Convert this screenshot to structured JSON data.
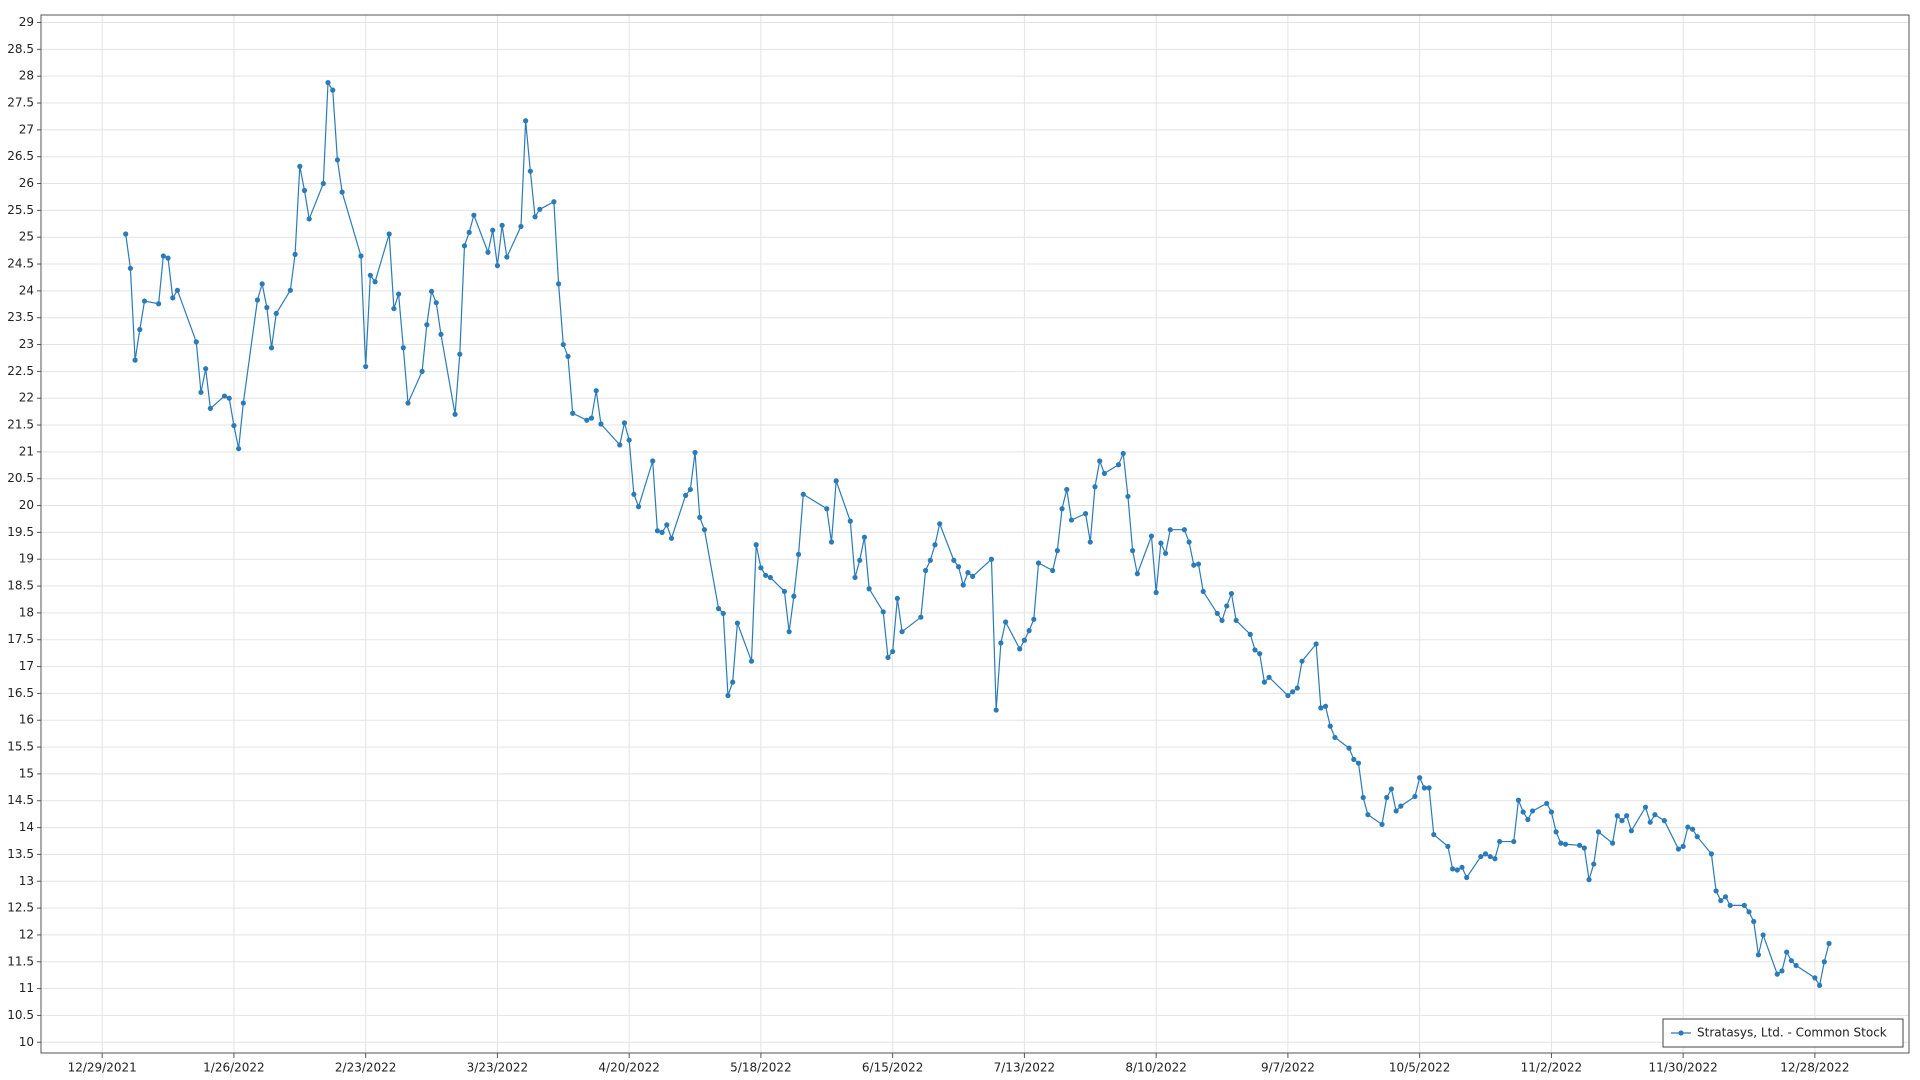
{
  "chart_data": {
    "type": "line",
    "grid": true,
    "markers": true,
    "legend": "lower right",
    "ylim": [
      9.8,
      29.14
    ],
    "yticks": [
      10,
      10.5,
      11,
      11.5,
      12,
      12.5,
      13,
      13.5,
      14,
      14.5,
      15,
      15.5,
      16,
      16.5,
      17,
      17.5,
      18,
      18.5,
      19,
      19.5,
      20,
      20.5,
      21,
      21.5,
      22,
      22.5,
      23,
      23.5,
      24,
      24.5,
      25,
      25.5,
      26,
      26.5,
      27,
      27.5,
      28,
      28.5,
      29
    ],
    "xlim": [
      "12/16/2021",
      "1/17/2023"
    ],
    "xticks": [
      "12/29/2021",
      "1/26/2022",
      "2/23/2022",
      "3/23/2022",
      "4/20/2022",
      "5/18/2022",
      "6/15/2022",
      "7/13/2022",
      "8/10/2022",
      "9/7/2022",
      "10/5/2022",
      "11/2/2022",
      "11/30/2022",
      "12/28/2022"
    ],
    "x": [
      "1/3/2022",
      "1/4/2022",
      "1/5/2022",
      "1/6/2022",
      "1/7/2022",
      "1/10/2022",
      "1/11/2022",
      "1/12/2022",
      "1/13/2022",
      "1/14/2022",
      "1/18/2022",
      "1/19/2022",
      "1/20/2022",
      "1/21/2022",
      "1/24/2022",
      "1/25/2022",
      "1/26/2022",
      "1/27/2022",
      "1/28/2022",
      "1/31/2022",
      "2/1/2022",
      "2/2/2022",
      "2/3/2022",
      "2/4/2022",
      "2/7/2022",
      "2/8/2022",
      "2/9/2022",
      "2/10/2022",
      "2/11/2022",
      "2/14/2022",
      "2/15/2022",
      "2/16/2022",
      "2/17/2022",
      "2/18/2022",
      "2/22/2022",
      "2/23/2022",
      "2/24/2022",
      "2/25/2022",
      "2/28/2022",
      "3/1/2022",
      "3/2/2022",
      "3/3/2022",
      "3/4/2022",
      "3/7/2022",
      "3/8/2022",
      "3/9/2022",
      "3/10/2022",
      "3/11/2022",
      "3/14/2022",
      "3/15/2022",
      "3/16/2022",
      "3/17/2022",
      "3/18/2022",
      "3/21/2022",
      "3/22/2022",
      "3/23/2022",
      "3/24/2022",
      "3/25/2022",
      "3/28/2022",
      "3/29/2022",
      "3/30/2022",
      "3/31/2022",
      "4/1/2022",
      "4/4/2022",
      "4/5/2022",
      "4/6/2022",
      "4/7/2022",
      "4/8/2022",
      "4/11/2022",
      "4/12/2022",
      "4/13/2022",
      "4/14/2022",
      "4/18/2022",
      "4/19/2022",
      "4/20/2022",
      "4/21/2022",
      "4/22/2022",
      "4/25/2022",
      "4/26/2022",
      "4/27/2022",
      "4/28/2022",
      "4/29/2022",
      "5/2/2022",
      "5/3/2022",
      "5/4/2022",
      "5/5/2022",
      "5/6/2022",
      "5/9/2022",
      "5/10/2022",
      "5/11/2022",
      "5/12/2022",
      "5/13/2022",
      "5/16/2022",
      "5/17/2022",
      "5/18/2022",
      "5/19/2022",
      "5/20/2022",
      "5/23/2022",
      "5/24/2022",
      "5/25/2022",
      "5/26/2022",
      "5/27/2022",
      "6/1/2022",
      "6/2/2022",
      "6/3/2022",
      "6/6/2022",
      "6/7/2022",
      "6/8/2022",
      "6/9/2022",
      "6/10/2022",
      "6/13/2022",
      "6/14/2022",
      "6/15/2022",
      "6/16/2022",
      "6/17/2022",
      "6/21/2022",
      "6/22/2022",
      "6/23/2022",
      "6/24/2022",
      "6/25/2022",
      "6/28/2022",
      "6/29/2022",
      "6/30/2022",
      "7/1/2022",
      "7/2/2022",
      "7/6/2022",
      "7/7/2022",
      "7/8/2022",
      "7/9/2022",
      "7/12/2022",
      "7/13/2022",
      "7/14/2022",
      "7/15/2022",
      "7/16/2022",
      "7/19/2022",
      "7/20/2022",
      "7/21/2022",
      "7/22/2022",
      "7/23/2022",
      "7/26/2022",
      "7/27/2022",
      "7/28/2022",
      "7/29/2022",
      "7/30/2022",
      "8/2/2022",
      "8/3/2022",
      "8/4/2022",
      "8/5/2022",
      "8/6/2022",
      "8/9/2022",
      "8/10/2022",
      "8/11/2022",
      "8/12/2022",
      "8/13/2022",
      "8/16/2022",
      "8/17/2022",
      "8/18/2022",
      "8/19/2022",
      "8/20/2022",
      "8/23/2022",
      "8/24/2022",
      "8/25/2022",
      "8/26/2022",
      "8/27/2022",
      "8/30/2022",
      "8/31/2022",
      "9/1/2022",
      "9/2/2022",
      "9/3/2022",
      "9/7/2022",
      "9/8/2022",
      "9/9/2022",
      "9/10/2022",
      "9/13/2022",
      "9/14/2022",
      "9/15/2022",
      "9/16/2022",
      "9/17/2022",
      "9/20/2022",
      "9/21/2022",
      "9/22/2022",
      "9/23/2022",
      "9/24/2022",
      "9/27/2022",
      "9/28/2022",
      "9/29/2022",
      "9/30/2022",
      "10/1/2022",
      "10/4/2022",
      "10/5/2022",
      "10/6/2022",
      "10/7/2022",
      "10/8/2022",
      "10/11/2022",
      "10/12/2022",
      "10/13/2022",
      "10/14/2022",
      "10/15/2022",
      "10/18/2022",
      "10/19/2022",
      "10/20/2022",
      "10/21/2022",
      "10/22/2022",
      "10/25/2022",
      "10/26/2022",
      "10/27/2022",
      "10/28/2022",
      "10/29/2022",
      "11/1/2022",
      "11/2/2022",
      "11/3/2022",
      "11/4/2022",
      "11/5/2022",
      "11/8/2022",
      "11/9/2022",
      "11/10/2022",
      "11/11/2022",
      "11/12/2022",
      "11/15/2022",
      "11/16/2022",
      "11/17/2022",
      "11/18/2022",
      "11/19/2022",
      "11/22/2022",
      "11/23/2022",
      "11/24/2022",
      "11/26/2022",
      "11/29/2022",
      "11/30/2022",
      "12/1/2022",
      "12/2/2022",
      "12/3/2022",
      "12/6/2022",
      "12/7/2022",
      "12/8/2022",
      "12/9/2022",
      "12/10/2022",
      "12/13/2022",
      "12/14/2022",
      "12/15/2022",
      "12/16/2022",
      "12/17/2022",
      "12/20/2022",
      "12/21/2022",
      "12/22/2022",
      "12/23/2022",
      "12/24/2022",
      "12/28/2022",
      "12/29/2022",
      "12/30/2022",
      "12/31/2022"
    ],
    "series": [
      {
        "name": "Stratasys, Ltd. - Common Stock",
        "color": "#2b7bb9",
        "values": [
          25.06,
          24.42,
          22.71,
          23.28,
          23.81,
          23.76,
          24.65,
          24.61,
          23.87,
          24.01,
          23.05,
          22.11,
          22.55,
          21.81,
          22.04,
          22.0,
          21.49,
          21.06,
          21.91,
          23.83,
          24.13,
          23.69,
          22.94,
          23.58,
          24.01,
          24.68,
          26.32,
          25.87,
          25.34,
          26.0,
          27.88,
          27.74,
          26.44,
          25.84,
          24.65,
          22.59,
          24.29,
          24.17,
          25.06,
          23.67,
          23.94,
          22.94,
          21.91,
          22.5,
          23.37,
          23.99,
          23.78,
          23.19,
          21.7,
          22.82,
          24.84,
          25.09,
          25.41,
          24.72,
          25.13,
          24.47,
          25.22,
          24.63,
          25.2,
          27.17,
          26.23,
          25.38,
          25.52,
          25.66,
          24.13,
          23.0,
          22.78,
          21.72,
          21.59,
          21.63,
          22.14,
          21.52,
          21.13,
          21.54,
          21.22,
          20.21,
          19.98,
          20.83,
          19.53,
          19.5,
          19.64,
          19.39,
          20.19,
          20.3,
          20.99,
          19.78,
          19.55,
          18.08,
          17.99,
          16.46,
          16.71,
          17.81,
          17.1,
          19.27,
          18.84,
          18.7,
          18.66,
          18.4,
          17.65,
          18.31,
          19.09,
          20.21,
          19.94,
          19.32,
          20.46,
          19.71,
          18.66,
          18.98,
          19.41,
          18.45,
          18.02,
          17.17,
          17.28,
          18.27,
          17.65,
          17.92,
          18.79,
          18.98,
          19.27,
          19.66,
          18.98,
          18.86,
          18.52,
          18.75,
          18.68,
          19.0,
          16.19,
          17.44,
          17.83,
          17.33,
          17.49,
          17.67,
          17.88,
          18.93,
          18.79,
          19.16,
          19.94,
          20.3,
          19.73,
          19.85,
          19.32,
          20.35,
          20.83,
          20.6,
          20.76,
          20.97,
          20.17,
          19.16,
          18.73,
          19.43,
          18.38,
          19.3,
          19.11,
          19.55,
          19.55,
          19.32,
          18.89,
          18.91,
          18.4,
          17.99,
          17.86,
          18.13,
          18.36,
          17.86,
          17.6,
          17.31,
          17.24,
          16.71,
          16.8,
          16.46,
          16.53,
          16.6,
          17.1,
          17.42,
          16.23,
          16.26,
          15.89,
          15.68,
          15.48,
          15.27,
          15.2,
          14.56,
          14.24,
          14.06,
          14.56,
          14.72,
          14.31,
          14.4,
          14.58,
          14.93,
          14.74,
          14.74,
          13.87,
          13.65,
          13.23,
          13.21,
          13.26,
          13.07,
          13.46,
          13.51,
          13.46,
          13.42,
          13.74,
          13.74,
          14.51,
          14.29,
          14.15,
          14.31,
          14.45,
          14.29,
          13.92,
          13.71,
          13.69,
          13.67,
          13.62,
          13.03,
          13.32,
          13.92,
          13.71,
          14.22,
          14.13,
          14.22,
          13.94,
          14.38,
          14.1,
          14.24,
          14.13,
          13.6,
          13.65,
          14.01,
          13.97,
          13.83,
          13.51,
          12.82,
          12.64,
          12.71,
          12.55,
          12.55,
          12.43,
          12.25,
          11.63,
          12.0,
          11.27,
          11.33,
          11.68,
          11.52,
          11.43,
          11.2,
          11.06,
          11.5,
          11.84
        ]
      }
    ]
  }
}
